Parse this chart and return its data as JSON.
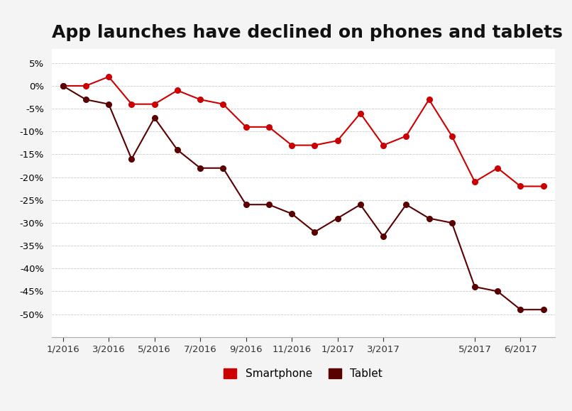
{
  "title": "App launches have declined on phones and tablets",
  "smartphone_y": [
    0,
    0,
    2,
    -4,
    -4,
    -1,
    -3,
    -4,
    -9,
    -9,
    -13,
    -13,
    -12,
    -6,
    -13,
    -11,
    -3,
    -11,
    -21,
    -18,
    -22,
    -22
  ],
  "tablet_y": [
    0,
    -3,
    -4,
    -16,
    -7,
    -14,
    -18,
    -18,
    -26,
    -26,
    -28,
    -32,
    -29,
    -26,
    -33,
    -26,
    -29,
    -30,
    -44,
    -45,
    -49,
    -49
  ],
  "n_points": 22,
  "xtick_positions": [
    0,
    2,
    4,
    6,
    8,
    10,
    12,
    14,
    18,
    20
  ],
  "xtick_labels": [
    "1/2016",
    "3/2016",
    "5/2016",
    "7/2016",
    "9/2016",
    "11/2016",
    "1/2017",
    "3/2017",
    "5/2017",
    "6/2017"
  ],
  "smartphone_color": "#cc0000",
  "tablet_color": "#5a0000",
  "ylim": [
    -55,
    8
  ],
  "yticks": [
    5,
    0,
    -5,
    -10,
    -15,
    -20,
    -25,
    -30,
    -35,
    -40,
    -45,
    -50
  ],
  "background_color": "#f4f4f4",
  "plot_bg": "#ffffff",
  "legend_labels": [
    "Smartphone",
    "Tablet"
  ],
  "title_fontsize": 18
}
